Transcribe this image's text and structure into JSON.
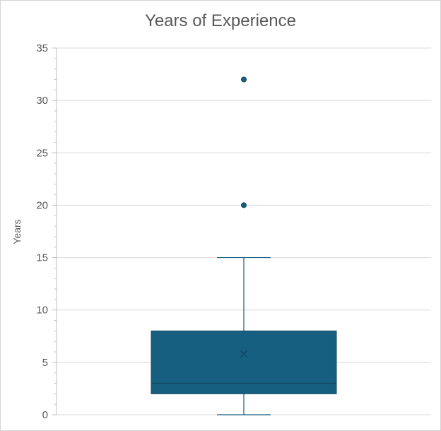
{
  "chart_data": {
    "type": "box",
    "title": "Years of Experience",
    "xlabel": "",
    "ylabel": "Years",
    "ylim": [
      0,
      35
    ],
    "yticks": [
      0,
      5,
      10,
      15,
      20,
      25,
      30,
      35
    ],
    "grid": true,
    "legend": "none",
    "series": [
      {
        "min": 0,
        "q1": 2,
        "median": 3,
        "q3": 8,
        "max": 15,
        "mean": 5.8,
        "outliers": [
          20,
          32
        ]
      }
    ],
    "colors": {
      "box_fill": "#175f80",
      "box_stroke": "#0f4761",
      "whisker": "#175f80",
      "gridline": "#d9d9d9",
      "axis": "#bfbfbf",
      "text": "#595959"
    }
  }
}
